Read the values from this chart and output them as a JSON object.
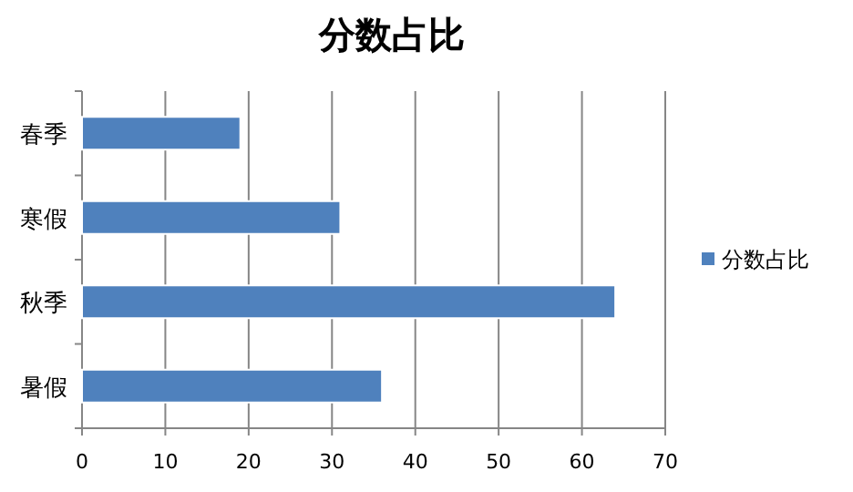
{
  "chart_data": {
    "type": "bar",
    "orientation": "horizontal",
    "title": "分数占比",
    "categories": [
      "春季",
      "寒假",
      "秋季",
      "暑假"
    ],
    "series": [
      {
        "name": "分数占比",
        "color": "#4f81bd",
        "values": [
          19,
          31,
          64,
          36
        ]
      }
    ],
    "xlim": [
      0,
      70
    ],
    "xticks": [
      0,
      10,
      20,
      30,
      40,
      50,
      60,
      70
    ],
    "grid": "x",
    "legend": "right"
  }
}
